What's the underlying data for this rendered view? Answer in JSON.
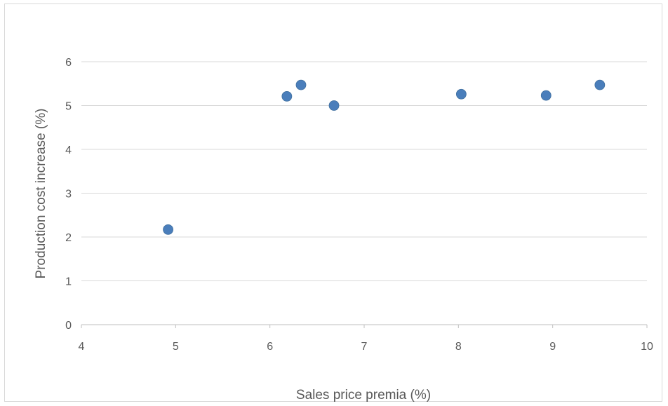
{
  "chart_data": {
    "type": "scatter",
    "title": "",
    "xlabel": "Sales price premia (%)",
    "ylabel": "Production cost increase (%)",
    "xlim": [
      4,
      10
    ],
    "ylim": [
      0,
      6
    ],
    "x_ticks": [
      4,
      5,
      6,
      7,
      8,
      9,
      10
    ],
    "y_ticks": [
      0,
      1,
      2,
      3,
      4,
      5,
      6
    ],
    "grid": "horizontal",
    "legend": "none",
    "marker_color": "#4a7ebb",
    "points": [
      {
        "x": 4.92,
        "y": 2.17
      },
      {
        "x": 6.18,
        "y": 5.21
      },
      {
        "x": 6.33,
        "y": 5.47
      },
      {
        "x": 6.68,
        "y": 5.0
      },
      {
        "x": 8.03,
        "y": 5.26
      },
      {
        "x": 8.93,
        "y": 5.23
      },
      {
        "x": 9.5,
        "y": 5.47
      }
    ]
  }
}
